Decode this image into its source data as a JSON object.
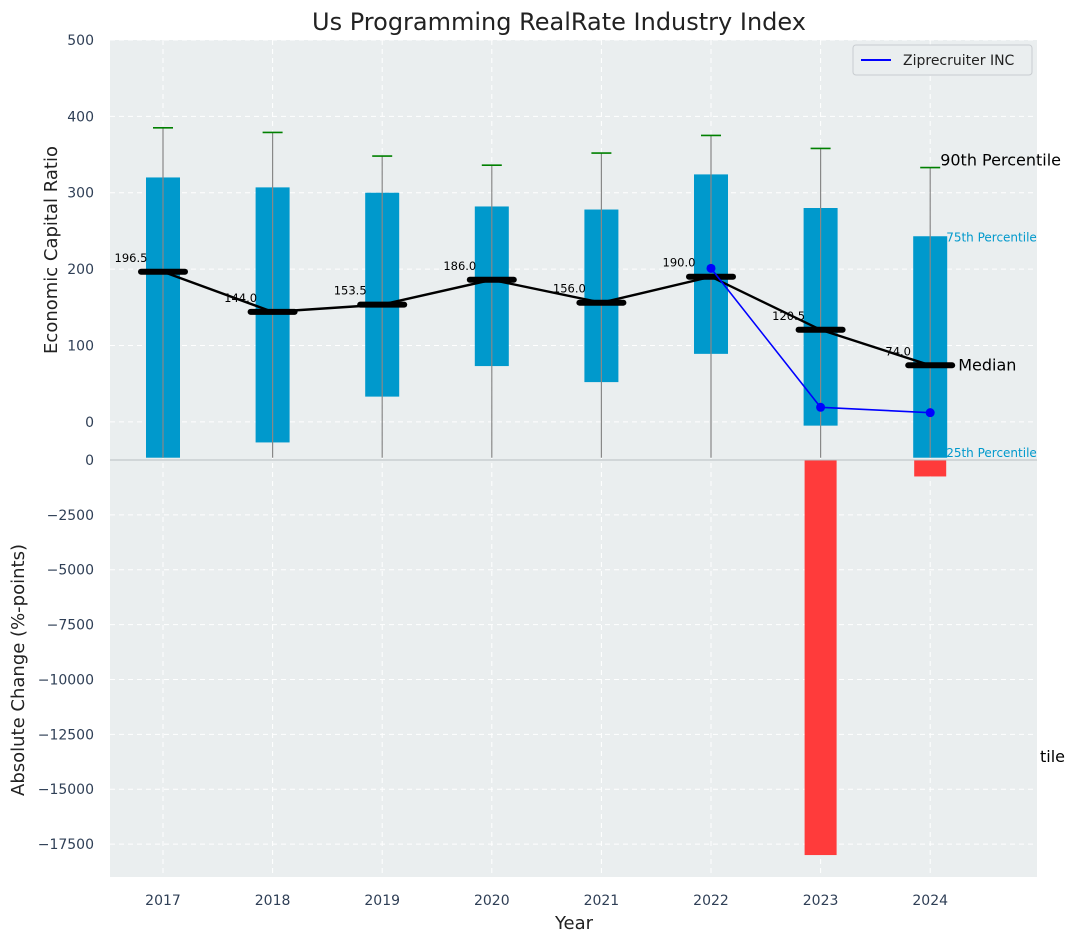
{
  "chart_data": {
    "type": "box-percentile-with-change",
    "title": "Us Programming RealRate Industry Index",
    "xlabel": "Year",
    "ylabel_top": "Economic Capital Ratio",
    "ylabel_bottom": "Absolute Change (%-points)",
    "categories": [
      "2017",
      "2018",
      "2019",
      "2020",
      "2021",
      "2022",
      "2023",
      "2024"
    ],
    "top_ylim": [
      -50,
      500
    ],
    "top_yticks": [
      0,
      100,
      200,
      300,
      400,
      500
    ],
    "bottom_ylim": [
      -19000,
      0
    ],
    "bottom_yticks": [
      0,
      -2500,
      -5000,
      -7500,
      -10000,
      -12500,
      -15000,
      -17500
    ],
    "series": [
      {
        "name": "p10",
        "values": [
          -47,
          -47,
          -47,
          -47,
          -47,
          -47,
          -47,
          -47
        ]
      },
      {
        "name": "p25",
        "values": [
          -47,
          -27,
          33,
          73,
          52,
          89,
          -5,
          -47
        ]
      },
      {
        "name": "median",
        "values": [
          196.5,
          144.0,
          153.5,
          186.0,
          156.0,
          190.0,
          120.5,
          74.0
        ]
      },
      {
        "name": "p75",
        "values": [
          320,
          307,
          300,
          282,
          278,
          324,
          280,
          243
        ]
      },
      {
        "name": "p90",
        "values": [
          385,
          379,
          348,
          336,
          352,
          375,
          358,
          333
        ]
      },
      {
        "name": "Ziprecruiter INC",
        "years": [
          "2022",
          "2023",
          "2024"
        ],
        "values": [
          201,
          19,
          12
        ]
      },
      {
        "name": "Absolute Change",
        "values": [
          0,
          0,
          0,
          0,
          0,
          0,
          -18000,
          -750
        ]
      }
    ],
    "median_labels": [
      "196.5",
      "144.0",
      "153.5",
      "186.0",
      "156.0",
      "190.0",
      "120.5",
      "74.0"
    ],
    "legend": [
      "Ziprecruiter INC"
    ],
    "legend_position": "top-right",
    "annotations": {
      "p90": "90th Percentile",
      "p75": "75th Percentile",
      "median": "Median",
      "p25": "25th Percentile",
      "p10_clipped": "tile"
    },
    "colors": {
      "box": "#0099cc",
      "median": "#000000",
      "whisker_cap": "#008000",
      "whisker": "#888888",
      "company": "#0000ff",
      "change_bar": "#ff3b3b",
      "background": "#eaeeef",
      "grid": "#ffffff"
    }
  }
}
